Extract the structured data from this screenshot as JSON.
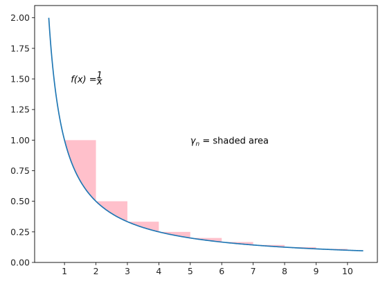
{
  "chart_data": {
    "type": "line",
    "title": "",
    "xlabel": "",
    "ylabel": "",
    "xlim": [
      0.05,
      10.95
    ],
    "ylim": [
      0.0,
      2.1
    ],
    "x_ticks": [
      1,
      2,
      3,
      4,
      5,
      6,
      7,
      8,
      9,
      10
    ],
    "x_tick_labels": [
      "1",
      "2",
      "3",
      "4",
      "5",
      "6",
      "7",
      "8",
      "9",
      "10"
    ],
    "y_ticks": [
      0.0,
      0.25,
      0.5,
      0.75,
      1.0,
      1.25,
      1.5,
      1.75,
      2.0
    ],
    "y_tick_labels": [
      "0.00",
      "0.25",
      "0.50",
      "0.75",
      "1.00",
      "1.25",
      "1.50",
      "1.75",
      "2.00"
    ],
    "grid": false,
    "series": [
      {
        "function": "1/x",
        "x_range": [
          0.5,
          10.5
        ],
        "color": "#1f77b4"
      }
    ],
    "shaded_regions": {
      "color": "#ffc0cb",
      "description": "area between step value 1/n on [n, n+1] and the curve 1/x",
      "steps": [
        {
          "x0": 1,
          "x1": 2,
          "height": 1.0
        },
        {
          "x0": 2,
          "x1": 3,
          "height": 0.5
        },
        {
          "x0": 3,
          "x1": 4,
          "height": 0.333
        },
        {
          "x0": 4,
          "x1": 5,
          "height": 0.25
        },
        {
          "x0": 5,
          "x1": 6,
          "height": 0.2
        },
        {
          "x0": 6,
          "x1": 7,
          "height": 0.167
        },
        {
          "x0": 7,
          "x1": 8,
          "height": 0.143
        },
        {
          "x0": 8,
          "x1": 9,
          "height": 0.125
        },
        {
          "x0": 9,
          "x1": 10,
          "height": 0.111
        }
      ]
    },
    "annotations": [
      {
        "x": 1.2,
        "y": 1.5,
        "text": "f(x) = 1/x",
        "fx": "f(x)",
        "eq": " = ",
        "num": "1",
        "den": "x"
      },
      {
        "x": 5.0,
        "y": 1.0,
        "text": "γn = shaded area",
        "symbol": "γ",
        "sub": "n",
        "rest": " = shaded area"
      }
    ]
  }
}
